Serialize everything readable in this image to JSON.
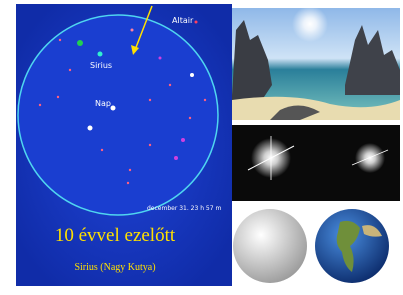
{
  "sky": {
    "labels": {
      "altair": "Altair",
      "sirius": "Sirius",
      "sun": "Nap"
    },
    "timestamp": "december 31. 23 h 57 m"
  },
  "caption": {
    "title": "10 évvel ezelőtt",
    "subtitle": "Sirius (Nagy Kutya)"
  }
}
